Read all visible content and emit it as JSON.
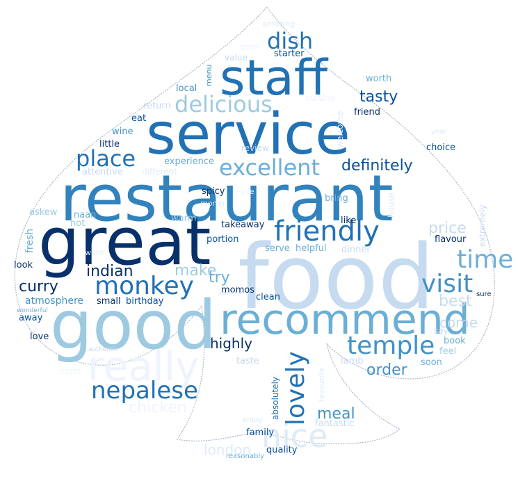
{
  "words": [
    {
      "text": "food",
      "color": "#c6dbef"
    },
    {
      "text": "restaurant",
      "color": "#3182bd"
    },
    {
      "text": "service",
      "color": "#2171b5"
    },
    {
      "text": "great",
      "color": "#08306b"
    },
    {
      "text": "good",
      "color": "#9ecae1"
    },
    {
      "text": "staff",
      "color": "#2171b5"
    },
    {
      "text": "recommend",
      "color": "#6baed6"
    },
    {
      "text": "really",
      "color": "#eff3ff"
    },
    {
      "text": "friendly",
      "color": "#2171b5"
    },
    {
      "text": "nice",
      "color": "#deebf7"
    },
    {
      "text": "temple",
      "color": "#4292c6"
    },
    {
      "text": "monkey",
      "color": "#2171b5"
    },
    {
      "text": "nepalese",
      "color": "#2171b5"
    },
    {
      "text": "dish",
      "color": "#2171b5"
    },
    {
      "text": "delicious",
      "color": "#9ecae1"
    },
    {
      "text": "excellent",
      "color": "#6baed6"
    },
    {
      "text": "place",
      "color": "#2171b5"
    },
    {
      "text": "time",
      "color": "#6baed6"
    },
    {
      "text": "visit",
      "color": "#4292c6"
    },
    {
      "text": "lovely",
      "color": "#2171b5"
    },
    {
      "text": "definitely",
      "color": "#08519c"
    },
    {
      "text": "tasty",
      "color": "#08519c"
    },
    {
      "text": "indian",
      "color": "#08306b"
    },
    {
      "text": "curry",
      "color": "#08306b"
    },
    {
      "text": "make",
      "color": "#9ecae1"
    },
    {
      "text": "try",
      "color": "#6baed6"
    },
    {
      "text": "highly",
      "color": "#08306b"
    },
    {
      "text": "order",
      "color": "#4292c6"
    },
    {
      "text": "meal",
      "color": "#4292c6"
    },
    {
      "text": "price",
      "color": "#c6dbef"
    },
    {
      "text": "best",
      "color": "#c6dbef"
    },
    {
      "text": "come",
      "color": "#c6dbef"
    },
    {
      "text": "chicken",
      "color": "#eff3ff"
    },
    {
      "text": "london",
      "color": "#deebf7"
    },
    {
      "text": "atmosphere",
      "color": "#4292c6"
    },
    {
      "text": "small",
      "color": "#08306b"
    },
    {
      "text": "birthday",
      "color": "#08519c"
    },
    {
      "text": "takeaway",
      "color": "#08306b"
    },
    {
      "text": "portion",
      "color": "#08519c"
    },
    {
      "text": "momos",
      "color": "#08306b"
    },
    {
      "text": "clean",
      "color": "#08519c"
    },
    {
      "text": "serve",
      "color": "#6baed6"
    },
    {
      "text": "helpful",
      "color": "#6baed6"
    },
    {
      "text": "dinner",
      "color": "#c6dbef"
    },
    {
      "text": "flavour",
      "color": "#08306b"
    },
    {
      "text": "book",
      "color": "#6baed6"
    },
    {
      "text": "feel",
      "color": "#9ecae1"
    },
    {
      "text": "soon",
      "color": "#6baed6"
    },
    {
      "text": "lamb",
      "color": "#c6dbef"
    },
    {
      "text": "fantastic",
      "color": "#c6dbef"
    },
    {
      "text": "quality",
      "color": "#08519c"
    },
    {
      "text": "family",
      "color": "#08519c"
    },
    {
      "text": "enjoy",
      "color": "#deebf7"
    },
    {
      "text": "reasonably",
      "color": "#6baed6"
    },
    {
      "text": "absolutely",
      "color": "#2171b5"
    },
    {
      "text": "favourite",
      "color": "#deebf7"
    },
    {
      "text": "taste",
      "color": "#c6dbef"
    },
    {
      "text": "night",
      "color": "#eff3ff"
    },
    {
      "text": "authentic",
      "color": "#c6dbef"
    },
    {
      "text": "love",
      "color": "#08306b"
    },
    {
      "text": "away",
      "color": "#08519c"
    },
    {
      "text": "wonderful",
      "color": "#6baed6"
    },
    {
      "text": "look",
      "color": "#08306b"
    },
    {
      "text": "fresh",
      "color": "#6baed6"
    },
    {
      "text": "askew",
      "color": "#9ecae1"
    },
    {
      "text": "naan",
      "color": "#6baed6"
    },
    {
      "text": "hot",
      "color": "#9ecae1"
    },
    {
      "text": "warm",
      "color": "#9ecae1"
    },
    {
      "text": "want",
      "color": "#deebf7"
    },
    {
      "text": "momo",
      "color": "#deebf7"
    },
    {
      "text": "spicy",
      "color": "#08306b"
    },
    {
      "text": "bring",
      "color": "#6baed6"
    },
    {
      "text": "like",
      "color": "#08306b"
    },
    {
      "text": "house",
      "color": "#deebf7"
    },
    {
      "text": "extremely",
      "color": "#c6dbef"
    },
    {
      "text": "owner",
      "color": "#deebf7"
    },
    {
      "text": "sure",
      "color": "#08306b"
    },
    {
      "text": "say",
      "color": "#c6dbef"
    },
    {
      "text": "choice",
      "color": "#08519c"
    },
    {
      "text": "year",
      "color": "#deebf7"
    },
    {
      "text": "welcome",
      "color": "#deebf7"
    },
    {
      "text": "cuisine",
      "color": "#eff3ff"
    },
    {
      "text": "friend",
      "color": "#08306b"
    },
    {
      "text": "worth",
      "color": "#6baed6"
    },
    {
      "text": "review",
      "color": "#c6dbef"
    },
    {
      "text": "experience",
      "color": "#6baed6"
    },
    {
      "text": "different",
      "color": "#deebf7"
    },
    {
      "text": "attentive",
      "color": "#c6dbef"
    },
    {
      "text": "little",
      "color": "#08306b"
    },
    {
      "text": "wine",
      "color": "#4292c6"
    },
    {
      "text": "eat",
      "color": "#08519c"
    },
    {
      "text": "return",
      "color": "#c6dbef"
    },
    {
      "text": "local",
      "color": "#4292c6"
    },
    {
      "text": "menu",
      "color": "#4292c6"
    },
    {
      "text": "value",
      "color": "#c6dbef"
    },
    {
      "text": "starter",
      "color": "#08519c"
    },
    {
      "text": "amazing",
      "color": "#deebf7"
    },
    {
      "text": "gaze",
      "color": "#eff3ff"
    },
    {
      "text": "size",
      "color": "#eff3ff"
    }
  ]
}
